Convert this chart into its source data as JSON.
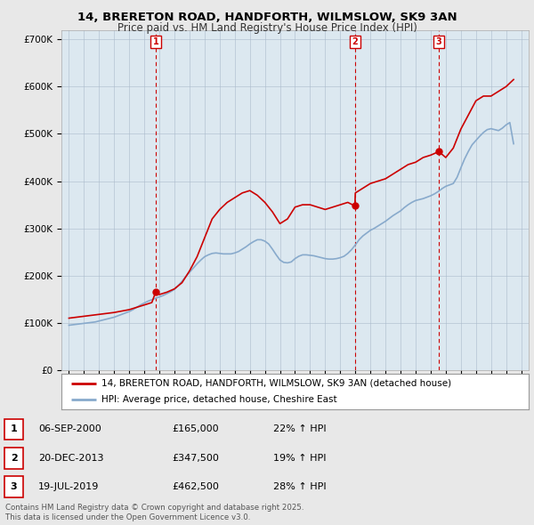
{
  "title_line1": "14, BRERETON ROAD, HANDFORTH, WILMSLOW, SK9 3AN",
  "title_line2": "Price paid vs. HM Land Registry's House Price Index (HPI)",
  "legend_line1": "14, BRERETON ROAD, HANDFORTH, WILMSLOW, SK9 3AN (detached house)",
  "legend_line2": "HPI: Average price, detached house, Cheshire East",
  "sale_color": "#cc0000",
  "hpi_color": "#88aacc",
  "transactions": [
    {
      "label": "1",
      "date": "06-SEP-2000",
      "price": 165000,
      "pct": "22% ↑ HPI",
      "x_year": 2000.75
    },
    {
      "label": "2",
      "date": "20-DEC-2013",
      "price": 347500,
      "pct": "19% ↑ HPI",
      "x_year": 2013.97
    },
    {
      "label": "3",
      "date": "19-JUL-2019",
      "price": 462500,
      "pct": "28% ↑ HPI",
      "x_year": 2019.54
    }
  ],
  "footer": "Contains HM Land Registry data © Crown copyright and database right 2025.\nThis data is licensed under the Open Government Licence v3.0.",
  "ylim": [
    0,
    720000
  ],
  "xlim": [
    1994.5,
    2025.5
  ],
  "yticks": [
    0,
    100000,
    200000,
    300000,
    400000,
    500000,
    600000,
    700000
  ],
  "ytick_labels": [
    "£0",
    "£100K",
    "£200K",
    "£300K",
    "£400K",
    "£500K",
    "£600K",
    "£700K"
  ],
  "background_color": "#e8e8e8",
  "plot_bg_color": "#dce8f0",
  "hpi_data_x": [
    1995.0,
    1995.25,
    1995.5,
    1995.75,
    1996.0,
    1996.25,
    1996.5,
    1996.75,
    1997.0,
    1997.25,
    1997.5,
    1997.75,
    1998.0,
    1998.25,
    1998.5,
    1998.75,
    1999.0,
    1999.25,
    1999.5,
    1999.75,
    2000.0,
    2000.25,
    2000.5,
    2000.75,
    2001.0,
    2001.25,
    2001.5,
    2001.75,
    2002.0,
    2002.25,
    2002.5,
    2002.75,
    2003.0,
    2003.25,
    2003.5,
    2003.75,
    2004.0,
    2004.25,
    2004.5,
    2004.75,
    2005.0,
    2005.25,
    2005.5,
    2005.75,
    2006.0,
    2006.25,
    2006.5,
    2006.75,
    2007.0,
    2007.25,
    2007.5,
    2007.75,
    2008.0,
    2008.25,
    2008.5,
    2008.75,
    2009.0,
    2009.25,
    2009.5,
    2009.75,
    2010.0,
    2010.25,
    2010.5,
    2010.75,
    2011.0,
    2011.25,
    2011.5,
    2011.75,
    2012.0,
    2012.25,
    2012.5,
    2012.75,
    2013.0,
    2013.25,
    2013.5,
    2013.75,
    2014.0,
    2014.25,
    2014.5,
    2014.75,
    2015.0,
    2015.25,
    2015.5,
    2015.75,
    2016.0,
    2016.25,
    2016.5,
    2016.75,
    2017.0,
    2017.25,
    2017.5,
    2017.75,
    2018.0,
    2018.25,
    2018.5,
    2018.75,
    2019.0,
    2019.25,
    2019.5,
    2019.75,
    2020.0,
    2020.25,
    2020.5,
    2020.75,
    2021.0,
    2021.25,
    2021.5,
    2021.75,
    2022.0,
    2022.25,
    2022.5,
    2022.75,
    2023.0,
    2023.25,
    2023.5,
    2023.75,
    2024.0,
    2024.25,
    2024.5
  ],
  "hpi_data_y": [
    95000,
    96000,
    97000,
    98000,
    99000,
    100000,
    101000,
    102000,
    104000,
    106000,
    108000,
    110000,
    112000,
    115000,
    118000,
    121000,
    124000,
    128000,
    133000,
    138000,
    142000,
    146000,
    149000,
    152000,
    155000,
    158000,
    162000,
    166000,
    171000,
    179000,
    188000,
    198000,
    207000,
    216000,
    225000,
    233000,
    240000,
    244000,
    247000,
    248000,
    247000,
    246000,
    246000,
    246000,
    248000,
    251000,
    256000,
    261000,
    267000,
    272000,
    276000,
    276000,
    273000,
    267000,
    256000,
    244000,
    233000,
    228000,
    227000,
    229000,
    236000,
    241000,
    244000,
    244000,
    243000,
    242000,
    240000,
    238000,
    236000,
    235000,
    235000,
    236000,
    238000,
    241000,
    247000,
    255000,
    265000,
    276000,
    284000,
    290000,
    296000,
    300000,
    305000,
    310000,
    315000,
    321000,
    327000,
    332000,
    337000,
    344000,
    350000,
    355000,
    359000,
    361000,
    363000,
    366000,
    369000,
    373000,
    378000,
    384000,
    389000,
    392000,
    395000,
    408000,
    428000,
    447000,
    463000,
    477000,
    486000,
    495000,
    503000,
    509000,
    511000,
    509000,
    507000,
    512000,
    519000,
    524000,
    479000
  ],
  "sale_data_x": [
    1995.0,
    1995.5,
    1996.0,
    1996.5,
    1997.0,
    1997.5,
    1998.0,
    1998.5,
    1999.0,
    1999.5,
    2000.0,
    2000.5,
    2000.75,
    2001.0,
    2001.5,
    2002.0,
    2002.5,
    2003.0,
    2003.5,
    2004.0,
    2004.5,
    2005.0,
    2005.5,
    2006.0,
    2006.5,
    2007.0,
    2007.5,
    2008.0,
    2008.5,
    2009.0,
    2009.5,
    2010.0,
    2010.5,
    2011.0,
    2011.5,
    2012.0,
    2012.5,
    2013.0,
    2013.5,
    2013.97,
    2014.0,
    2014.5,
    2015.0,
    2015.5,
    2016.0,
    2016.5,
    2017.0,
    2017.5,
    2018.0,
    2018.5,
    2019.0,
    2019.54,
    2020.0,
    2020.5,
    2021.0,
    2021.5,
    2022.0,
    2022.5,
    2023.0,
    2023.5,
    2024.0,
    2024.5
  ],
  "sale_data_y": [
    110000,
    112000,
    114000,
    116000,
    118000,
    120000,
    122000,
    125000,
    128000,
    133000,
    138000,
    143000,
    165000,
    160000,
    165000,
    172000,
    185000,
    210000,
    240000,
    280000,
    320000,
    340000,
    355000,
    365000,
    375000,
    380000,
    370000,
    355000,
    335000,
    310000,
    320000,
    345000,
    350000,
    350000,
    345000,
    340000,
    345000,
    350000,
    355000,
    347500,
    375000,
    385000,
    395000,
    400000,
    405000,
    415000,
    425000,
    435000,
    440000,
    450000,
    455000,
    462500,
    450000,
    470000,
    510000,
    540000,
    570000,
    580000,
    580000,
    590000,
    600000,
    615000
  ]
}
